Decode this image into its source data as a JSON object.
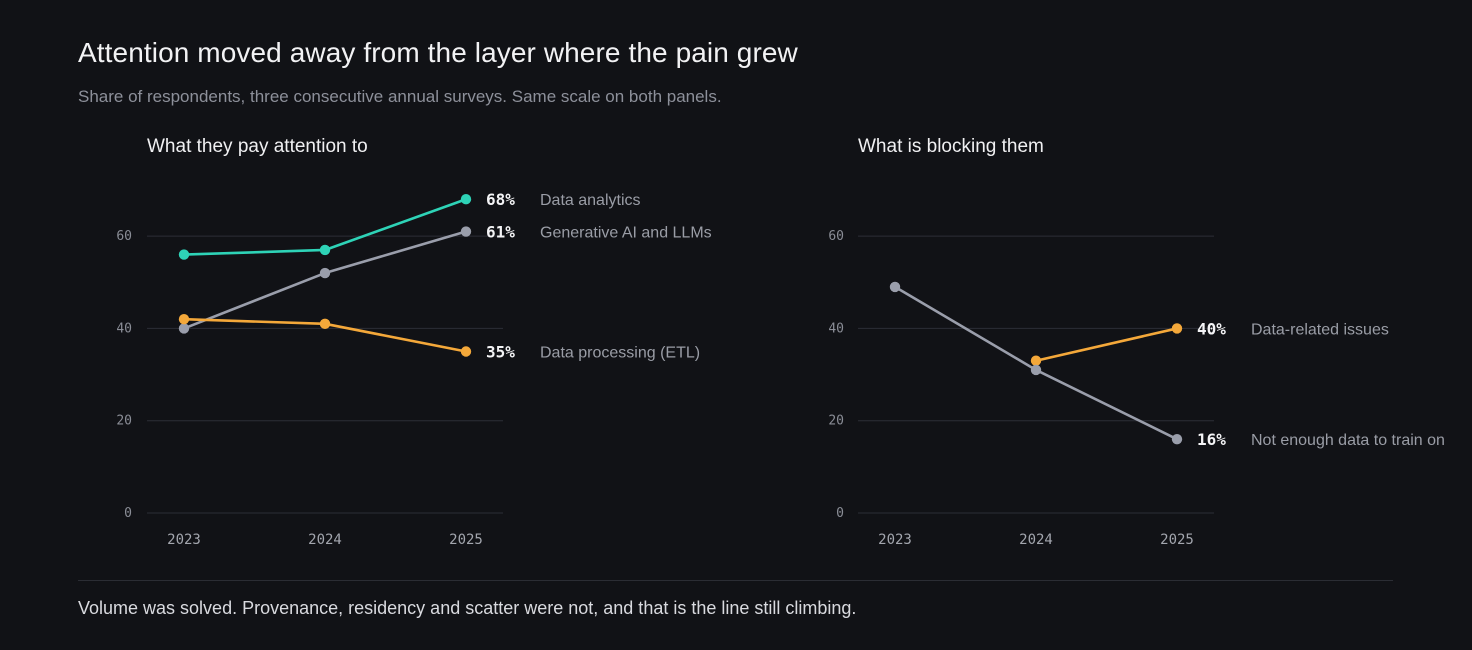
{
  "header": {
    "title": "Attention moved away from the layer where the pain grew",
    "subtitle": "Share of respondents, three consecutive annual surveys. Same scale on both panels."
  },
  "footer": {
    "note": "Volume was solved. Provenance, residency and scatter were not, and that is the line still climbing."
  },
  "colors": {
    "background": "#111216",
    "teal": "#2ed3b7",
    "gray": "#9a9eab",
    "orange": "#f4a83a",
    "grid": "#2c2e36"
  },
  "chart_data": [
    {
      "type": "line",
      "title": "What they pay attention to",
      "x": [
        "2023",
        "2024",
        "2025"
      ],
      "ylim": [
        0,
        70
      ],
      "yticks": [
        0,
        20,
        40,
        60
      ],
      "grid": true,
      "legend": "direct labels at line ends",
      "series": [
        {
          "name": "Data analytics",
          "values": [
            56,
            57,
            68
          ],
          "end_label": "68%",
          "color": "#2ed3b7"
        },
        {
          "name": "Generative AI and LLMs",
          "values": [
            40,
            52,
            61
          ],
          "end_label": "61%",
          "color": "#9a9eab"
        },
        {
          "name": "Data processing (ETL)",
          "values": [
            42,
            41,
            35
          ],
          "end_label": "35%",
          "color": "#f4a83a"
        }
      ]
    },
    {
      "type": "line",
      "title": "What is blocking them",
      "x": [
        "2023",
        "2024",
        "2025"
      ],
      "ylim": [
        0,
        70
      ],
      "yticks": [
        0,
        20,
        40,
        60
      ],
      "grid": true,
      "legend": "direct labels at line ends",
      "series": [
        {
          "name": "Data-related issues",
          "values": [
            null,
            33,
            40
          ],
          "end_label": "40%",
          "color": "#f4a83a"
        },
        {
          "name": "Not enough data to train on",
          "values": [
            49,
            31,
            16
          ],
          "end_label": "16%",
          "color": "#9a9eab"
        }
      ]
    }
  ]
}
